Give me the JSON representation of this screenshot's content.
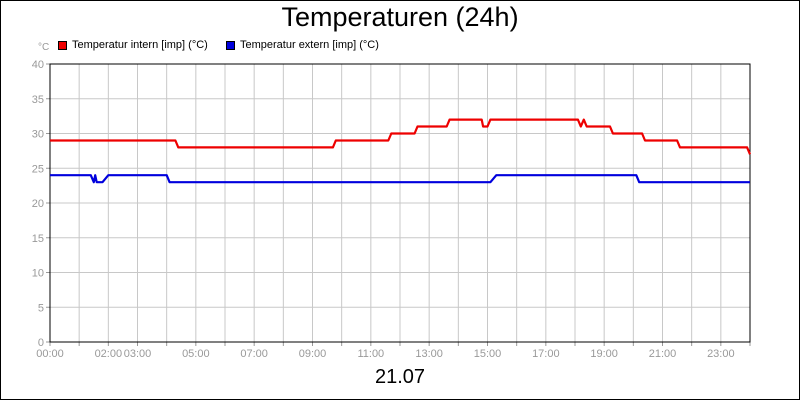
{
  "title": "Temperaturen (24h)",
  "date_label": "21.07",
  "unit_label": "°C",
  "chart_data": {
    "type": "line",
    "title": "Temperaturen (24h)",
    "xlabel": "21.07",
    "ylabel": "°C",
    "xlim": [
      0,
      24
    ],
    "ylim": [
      0,
      40
    ],
    "y_ticks": [
      0,
      5,
      10,
      15,
      20,
      25,
      30,
      35,
      40
    ],
    "y_tick_labels": [
      "0",
      "5",
      "10",
      "15",
      "20",
      "25",
      "30",
      "35",
      "40"
    ],
    "x_ticks": [
      0,
      2,
      3,
      5,
      7,
      9,
      11,
      13,
      15,
      17,
      19,
      21,
      23
    ],
    "x_tick_labels": [
      "00:00",
      "02:00",
      "03:00",
      "05:00",
      "07:00",
      "09:00",
      "11:00",
      "13:00",
      "15:00",
      "17:00",
      "19:00",
      "21:00",
      "23:00"
    ],
    "grid": true,
    "legend_position": "top-left",
    "series": [
      {
        "name": "Temperatur intern [imp] (°C)",
        "color": "#ee0000",
        "x": [
          0,
          4.3,
          4.4,
          9.7,
          9.8,
          11.6,
          11.7,
          12.5,
          12.6,
          13.6,
          13.7,
          14.8,
          14.85,
          15.0,
          15.1,
          18.1,
          18.2,
          18.3,
          18.4,
          18.5,
          19.2,
          19.3,
          20.3,
          20.4,
          21.5,
          21.6,
          23.9,
          24.0
        ],
        "y": [
          29,
          29,
          28,
          28,
          29,
          29,
          30,
          30,
          31,
          31,
          32,
          32,
          31,
          31,
          32,
          32,
          31,
          32,
          31,
          31,
          31,
          30,
          30,
          29,
          29,
          28,
          28,
          27
        ]
      },
      {
        "name": "Temperatur extern [imp] (°C)",
        "color": "#0000dd",
        "x": [
          0,
          1.4,
          1.5,
          1.55,
          1.6,
          1.8,
          2.0,
          4.0,
          4.1,
          15.1,
          15.3,
          20.1,
          20.2,
          24.0
        ],
        "y": [
          24,
          24,
          23,
          24,
          23,
          23,
          24,
          24,
          23,
          23,
          24,
          24,
          23,
          23
        ]
      }
    ]
  }
}
